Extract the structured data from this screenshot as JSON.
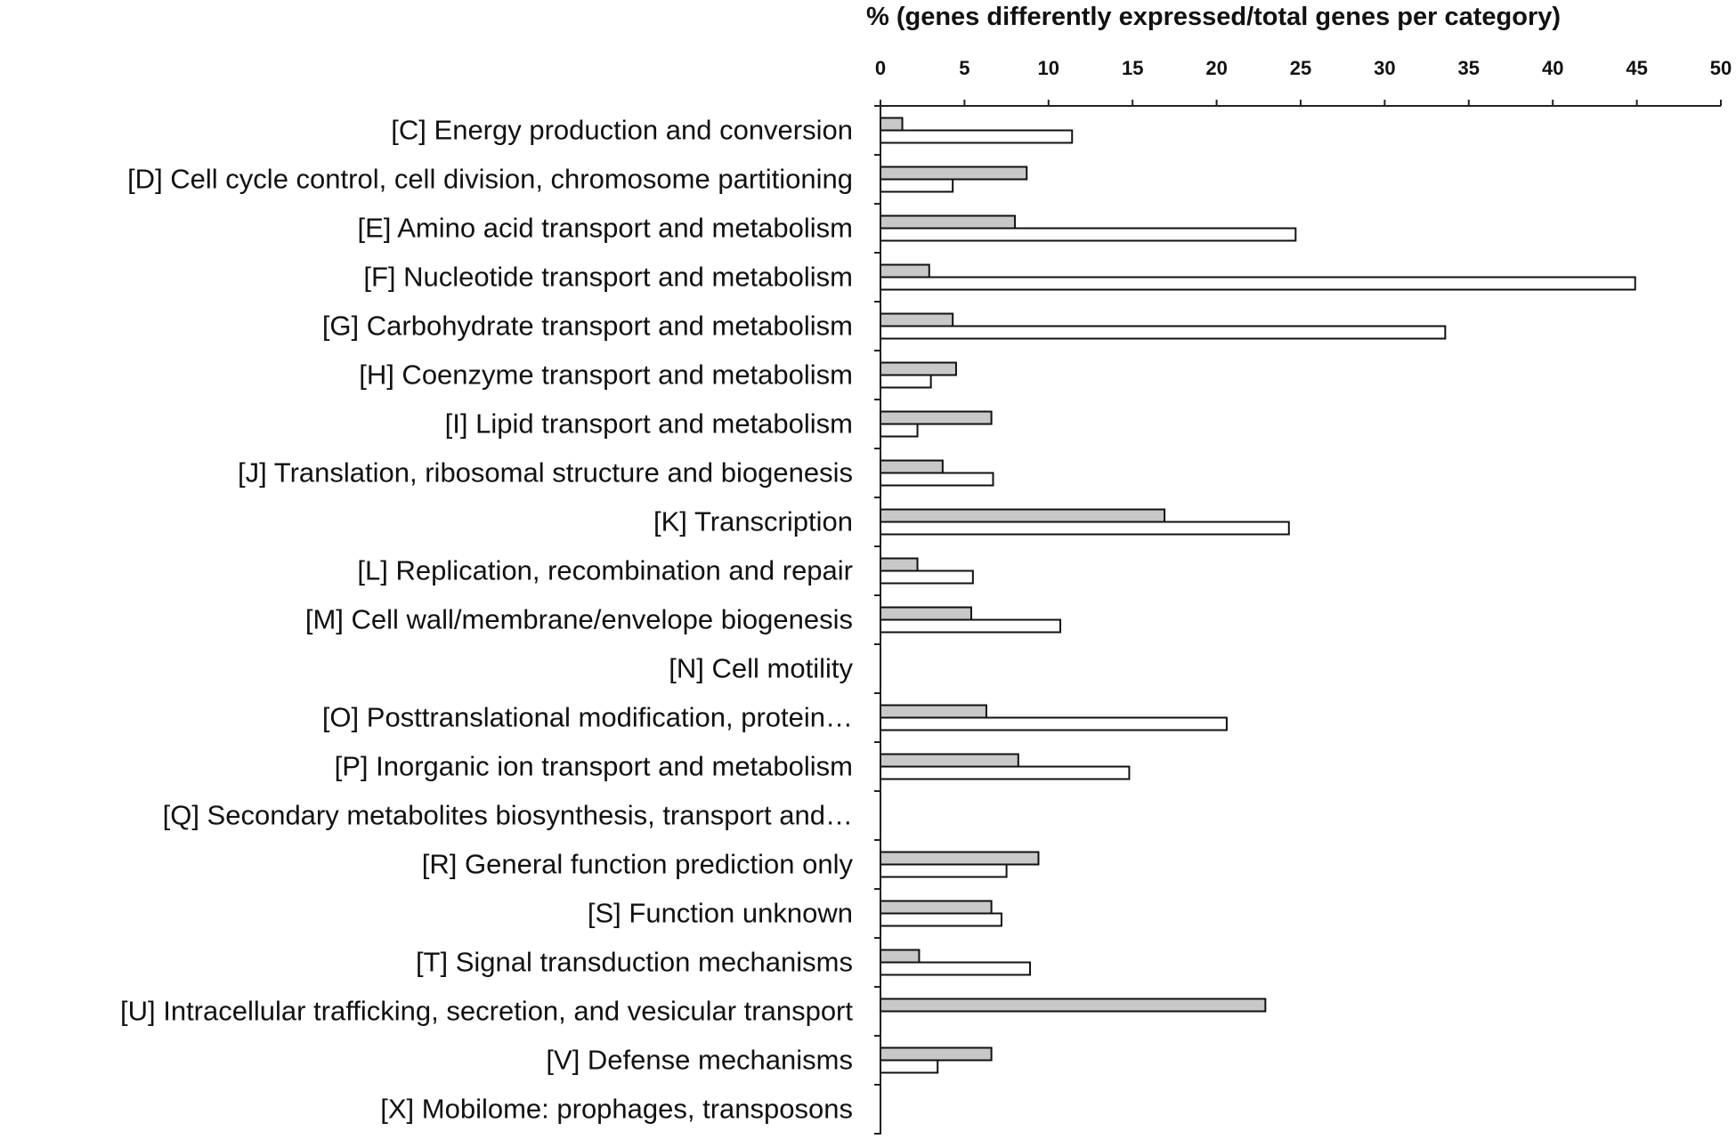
{
  "chart_data": {
    "type": "bar",
    "orientation": "horizontal",
    "title": "",
    "xlabel": "% (genes differently expressed/total genes per category)",
    "ylabel": "",
    "xlim": [
      0,
      50
    ],
    "x_ticks": [
      0,
      5,
      10,
      15,
      20,
      25,
      30,
      35,
      40,
      45,
      50
    ],
    "x_axis_position": "top",
    "grid": false,
    "legend": "none",
    "categories": [
      "[C] Energy production and conversion",
      "[D] Cell cycle control, cell division, chromosome partitioning",
      "[E] Amino acid transport and metabolism",
      "[F] Nucleotide transport and metabolism",
      "[G] Carbohydrate transport and metabolism",
      "[H] Coenzyme transport and metabolism",
      "[I] Lipid transport and metabolism",
      "[J] Translation, ribosomal structure and biogenesis",
      "[K] Transcription",
      "[L] Replication, recombination and repair",
      "[M] Cell wall/membrane/envelope biogenesis",
      "[N] Cell motility",
      "[O] Posttranslational modification, protein…",
      "[P] Inorganic ion transport and metabolism",
      "[Q] Secondary metabolites biosynthesis, transport and…",
      "[R] General function prediction only",
      "[S] Function unknown",
      "[T] Signal transduction mechanisms",
      "[U] Intracellular trafficking, secretion, and vesicular transport",
      "[V] Defense mechanisms",
      "[X] Mobilome: prophages, transposons"
    ],
    "series": [
      {
        "name": "gray",
        "color": "#c8c8c8",
        "values": [
          1.3,
          8.7,
          8.0,
          2.9,
          4.3,
          4.5,
          6.6,
          3.7,
          16.9,
          2.2,
          5.4,
          0,
          6.3,
          8.2,
          0,
          9.4,
          6.6,
          2.3,
          22.9,
          6.6,
          0
        ]
      },
      {
        "name": "white",
        "color": "#ffffff",
        "values": [
          11.4,
          4.3,
          24.7,
          44.9,
          33.6,
          3.0,
          2.2,
          6.7,
          24.3,
          5.5,
          10.7,
          0,
          20.6,
          14.8,
          0,
          7.5,
          7.2,
          8.9,
          0,
          3.4,
          0
        ]
      }
    ]
  }
}
